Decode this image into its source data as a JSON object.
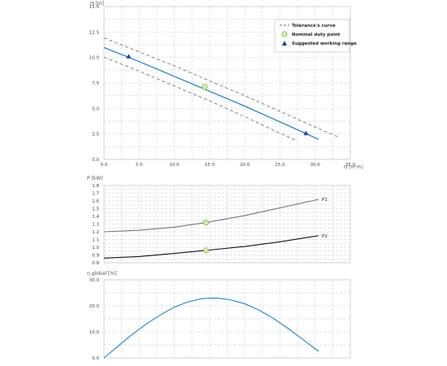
{
  "chart_data": [
    {
      "type": "line",
      "ylabel": "H [m]",
      "xlabel": "Q [m³/h]",
      "xlim": [
        0,
        35
      ],
      "ylim": [
        0,
        17.5
      ],
      "xticks": [
        "0.0",
        "5.0",
        "10.0",
        "15.0",
        "20.0",
        "25.0",
        "30.0",
        "35.0"
      ],
      "yticks": [
        "0.0",
        "2.5",
        "5.0",
        "7.5",
        "10.0",
        "12.5",
        "15.0"
      ],
      "grid": true,
      "legend_position": "top-right",
      "legend": [
        "Tolerance's curve",
        "Nominal duty point",
        "Suggested working range"
      ],
      "colors": {
        "curve": "#1b87c9",
        "tolerance": "#666666",
        "duty": "#8cc63f",
        "range": "#1a3fa8"
      },
      "series": [
        {
          "values": [
            [
              0,
              12.8
            ],
            [
              5,
              11.2
            ],
            [
              10,
              9.5
            ],
            [
              15,
              7.8
            ],
            [
              20,
              6.1
            ],
            [
              25,
              4.3
            ],
            [
              30.5,
              2.3
            ]
          ]
        },
        {
          "values": [
            [
              0,
              13.9
            ],
            [
              5,
              12.3
            ],
            [
              10,
              10.7
            ],
            [
              15,
              9.0
            ],
            [
              20,
              7.3
            ],
            [
              25,
              5.5
            ],
            [
              30,
              3.7
            ],
            [
              33.5,
              2.5
            ]
          ]
        },
        {
          "values": [
            [
              0,
              11.7
            ],
            [
              5,
              10.1
            ],
            [
              10,
              8.4
            ],
            [
              15,
              6.7
            ],
            [
              20,
              4.9
            ],
            [
              25,
              3.0
            ],
            [
              27.5,
              2.1
            ]
          ]
        }
      ],
      "points": [
        {
          "marker": "duty",
          "x": 14.3,
          "y": 8.3
        },
        {
          "marker": "range",
          "x": 3.5,
          "y": 11.8
        },
        {
          "marker": "range",
          "x": 28.7,
          "y": 3.0
        }
      ]
    },
    {
      "type": "line",
      "ylabel": "P [kW]",
      "xlim": [
        0,
        35
      ],
      "ylim": [
        0.8,
        1.8
      ],
      "yticks": [
        "0.8",
        "0.9",
        "1.0",
        "1.1",
        "1.2",
        "1.3",
        "1.4",
        "1.5",
        "1.6",
        "1.7",
        "1.8"
      ],
      "grid": true,
      "series": [
        {
          "name": "P1",
          "color": "#777777",
          "values": [
            [
              0,
              1.2
            ],
            [
              5,
              1.22
            ],
            [
              10,
              1.26
            ],
            [
              14.5,
              1.32
            ],
            [
              20,
              1.41
            ],
            [
              25,
              1.51
            ],
            [
              30.5,
              1.62
            ]
          ]
        },
        {
          "name": "P2",
          "color": "#111111",
          "values": [
            [
              0,
              0.86
            ],
            [
              5,
              0.88
            ],
            [
              10,
              0.92
            ],
            [
              14.5,
              0.96
            ],
            [
              20,
              1.01
            ],
            [
              25,
              1.07
            ],
            [
              30.5,
              1.15
            ]
          ]
        }
      ],
      "points": [
        {
          "marker": "duty",
          "x": 14.5,
          "y": 1.32
        },
        {
          "marker": "duty",
          "x": 14.5,
          "y": 0.96
        }
      ]
    },
    {
      "type": "line",
      "ylabel": "η global [%]",
      "xlim": [
        0,
        35
      ],
      "ylim": [
        0,
        30
      ],
      "yticks": [
        "0.0",
        "10.0",
        "20.0",
        "30.0"
      ],
      "grid": true,
      "series": [
        {
          "color": "#1b87c9",
          "values": [
            [
              0,
              0
            ],
            [
              2,
              4.5
            ],
            [
              4,
              9.0
            ],
            [
              6,
              13.0
            ],
            [
              8,
              16.5
            ],
            [
              10,
              19.5
            ],
            [
              12,
              21.6
            ],
            [
              14,
              22.8
            ],
            [
              16,
              23.0
            ],
            [
              18,
              22.3
            ],
            [
              20,
              20.8
            ],
            [
              22,
              18.4
            ],
            [
              24,
              15.3
            ],
            [
              26,
              11.6
            ],
            [
              28,
              7.6
            ],
            [
              30.5,
              2.5
            ]
          ]
        }
      ]
    }
  ]
}
